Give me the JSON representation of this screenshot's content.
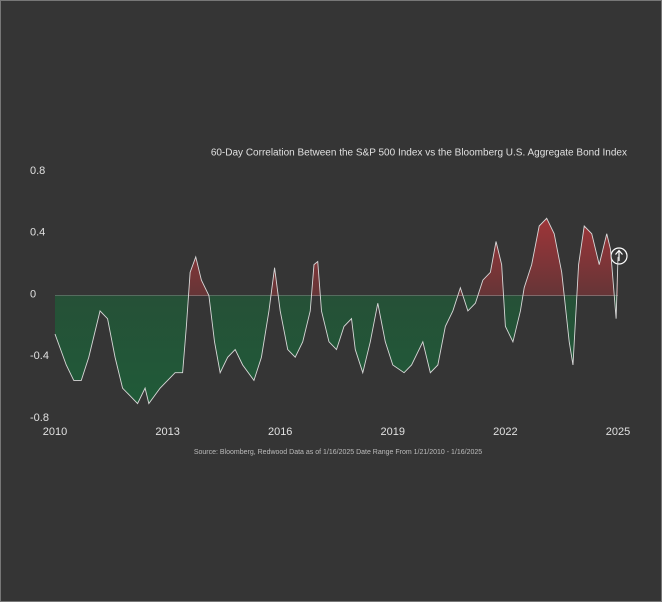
{
  "chart_data": {
    "type": "area",
    "title": "60-Day Correlation Between the S&P 500 Index vs the Bloomberg U.S. Aggregate Bond Index",
    "source": "Source: Bloomberg, Redwood Data as of 1/16/2025 Date Range From 1/21/2010 - 1/16/2025",
    "x": [
      2010,
      2010.15,
      2010.3,
      2010.5,
      2010.7,
      2010.9,
      2011.1,
      2011.2,
      2011.4,
      2011.6,
      2011.8,
      2012.0,
      2012.2,
      2012.4,
      2012.5,
      2012.8,
      2013.0,
      2013.2,
      2013.4,
      2013.5,
      2013.6,
      2013.75,
      2013.9,
      2014.0,
      2014.1,
      2014.25,
      2014.4,
      2014.6,
      2014.8,
      2015.0,
      2015.3,
      2015.5,
      2015.7,
      2015.85,
      2016.0,
      2016.2,
      2016.4,
      2016.6,
      2016.8,
      2016.9,
      2017.0,
      2017.1,
      2017.3,
      2017.5,
      2017.7,
      2017.9,
      2018.0,
      2018.2,
      2018.4,
      2018.6,
      2018.8,
      2019.0,
      2019.3,
      2019.5,
      2019.8,
      2020.0,
      2020.2,
      2020.4,
      2020.6,
      2020.8,
      2021.0,
      2021.2,
      2021.4,
      2021.6,
      2021.75,
      2021.9,
      2022.0,
      2022.2,
      2022.4,
      2022.5,
      2022.7,
      2022.9,
      2023.1,
      2023.3,
      2023.5,
      2023.7,
      2023.8,
      2023.95,
      2024.1,
      2024.3,
      2024.5,
      2024.7,
      2024.8,
      2024.9,
      2024.95,
      2025
    ],
    "values": [
      -0.25,
      -0.35,
      -0.45,
      -0.55,
      -0.55,
      -0.4,
      -0.2,
      -0.1,
      -0.15,
      -0.4,
      -0.6,
      -0.65,
      -0.7,
      -0.6,
      -0.7,
      -0.6,
      -0.55,
      -0.5,
      -0.5,
      -0.2,
      0.15,
      0.25,
      0.1,
      0.05,
      0.0,
      -0.3,
      -0.5,
      -0.4,
      -0.35,
      -0.45,
      -0.55,
      -0.4,
      -0.1,
      0.18,
      -0.1,
      -0.35,
      -0.4,
      -0.3,
      -0.1,
      0.2,
      0.22,
      -0.1,
      -0.3,
      -0.35,
      -0.2,
      -0.15,
      -0.35,
      -0.5,
      -0.3,
      -0.05,
      -0.3,
      -0.45,
      -0.5,
      -0.45,
      -0.3,
      -0.5,
      -0.45,
      -0.2,
      -0.1,
      0.05,
      -0.1,
      -0.05,
      0.1,
      0.15,
      0.35,
      0.2,
      -0.2,
      -0.3,
      -0.1,
      0.05,
      0.2,
      0.45,
      0.5,
      0.4,
      0.15,
      -0.3,
      -0.45,
      0.2,
      0.45,
      0.4,
      0.2,
      0.4,
      0.3,
      0.0,
      -0.15,
      0.25
    ],
    "xlim": [
      2010,
      2025
    ],
    "xticks": [
      2010,
      2013,
      2016,
      2019,
      2022,
      2025
    ],
    "ylim": [
      -0.8,
      0.8
    ],
    "yticks": [
      0.8,
      0.4,
      0,
      -0.4,
      -0.8
    ],
    "positive_color": "#c0353a",
    "negative_color": "#1f5c38",
    "line_color": "#d8d8d8",
    "zero_line": true
  }
}
